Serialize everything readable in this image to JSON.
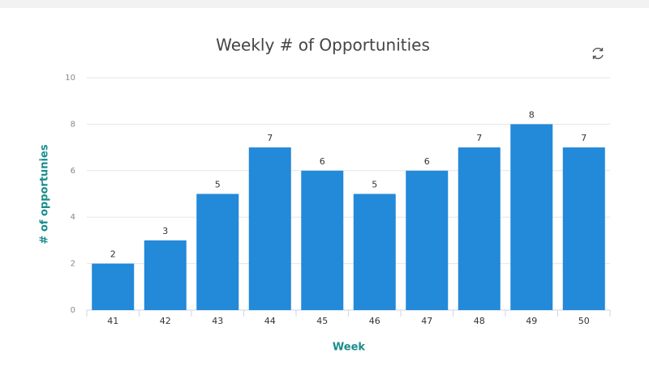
{
  "chart_data": {
    "type": "bar",
    "title": "Weekly # of Opportunities",
    "x_label": "Week",
    "y_label": "# of opportunies",
    "categories": [
      "41",
      "42",
      "43",
      "44",
      "45",
      "46",
      "47",
      "48",
      "49",
      "50"
    ],
    "values": [
      2,
      3,
      5,
      7,
      6,
      5,
      6,
      7,
      8,
      7
    ],
    "color": "#2389d9",
    "ylim": [
      0,
      10
    ],
    "yticks": [
      0,
      2,
      4,
      6,
      8,
      10
    ],
    "grid": true
  }
}
